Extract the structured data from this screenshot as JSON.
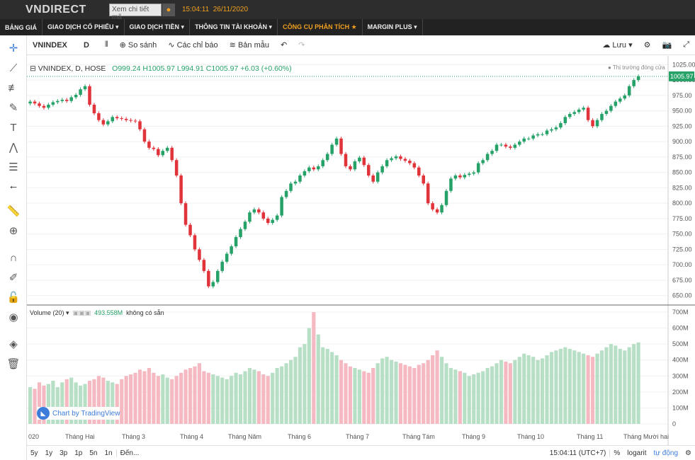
{
  "header": {
    "logo": "VNDIRECT",
    "search_placeholder": "Xem chi tiết mã",
    "clock": "15:04:11",
    "date": "26/11/2020"
  },
  "menu": [
    {
      "label": "BẢNG GIÁ",
      "active": false
    },
    {
      "label": "GIAO DỊCH CỔ PHIẾU ▾",
      "active": false
    },
    {
      "label": "GIAO DỊCH TIỀN ▾",
      "active": false
    },
    {
      "label": "THÔNG TIN TÀI KHOẢN ▾",
      "active": false
    },
    {
      "label": "CÔNG CỤ PHÂN TÍCH ★",
      "active": true
    },
    {
      "label": "MARGIN PLUS ▾",
      "active": false
    }
  ],
  "toolbar": {
    "symbol": "VNINDEX",
    "interval": "D",
    "compare": "So sánh",
    "indicators": "Các chỉ báo",
    "templates": "Bản mẫu",
    "save": "Lưu"
  },
  "legend": {
    "title": "VNINDEX, D, HOSE",
    "open": "O999.24",
    "high": "H1005.97",
    "low": "L994.91",
    "close": "C1005.97",
    "change": "+6.03 (+0.60%)",
    "market_status": "Thị trường đóng cửa",
    "last_price": "1005.97"
  },
  "volume_legend": {
    "label": "Volume (20)",
    "value": "493.558M",
    "na": "không có sẵn"
  },
  "watermark": "Chart by TradingView",
  "chart_data": {
    "type": "candlestick",
    "price_axis": [
      "1025.00",
      "1000.00",
      "975.00",
      "950.00",
      "925.00",
      "900.00",
      "875.00",
      "850.00",
      "825.00",
      "800.00",
      "775.00",
      "750.00",
      "725.00",
      "700.00",
      "675.00",
      "650.00"
    ],
    "price_range": [
      637,
      1030
    ],
    "volume_axis": [
      "700M",
      "600M",
      "500M",
      "400M",
      "300M",
      "200M",
      "100M",
      "0"
    ],
    "volume_range": [
      0,
      700
    ],
    "x_labels": [
      "020",
      "Tháng Hai",
      "Tháng 3",
      "Tháng 4",
      "Tháng Năm",
      "Tháng 6",
      "Tháng 7",
      "Tháng Tám",
      "Tháng 9",
      "Tháng 10",
      "Tháng 11",
      "Tháng Mười hai"
    ],
    "close_path": [
      965,
      962,
      958,
      955,
      960,
      964,
      966,
      968,
      966,
      972,
      976,
      985,
      990,
      960,
      946,
      935,
      928,
      933,
      940,
      938,
      937,
      935,
      934,
      933,
      920,
      900,
      890,
      888,
      878,
      885,
      890,
      870,
      845,
      800,
      765,
      748,
      725,
      708,
      690,
      665,
      672,
      690,
      705,
      718,
      730,
      745,
      758,
      770,
      785,
      790,
      785,
      775,
      768,
      773,
      780,
      810,
      820,
      832,
      835,
      845,
      852,
      858,
      855,
      860,
      870,
      880,
      895,
      905,
      880,
      860,
      855,
      868,
      874,
      862,
      845,
      835,
      850,
      860,
      870,
      873,
      876,
      872,
      869,
      865,
      858,
      845,
      832,
      800,
      790,
      785,
      797,
      820,
      840,
      845,
      842,
      846,
      848,
      850,
      865,
      870,
      880,
      885,
      895,
      895,
      892,
      890,
      895,
      900,
      905,
      905,
      910,
      912,
      912,
      918,
      920,
      923,
      930,
      940,
      945,
      948,
      952,
      955,
      935,
      925,
      935,
      945,
      950,
      958,
      965,
      970,
      975,
      990,
      1000,
      1006
    ],
    "volume_series_M": [
      230,
      220,
      260,
      240,
      250,
      270,
      230,
      260,
      280,
      290,
      260,
      240,
      250,
      270,
      280,
      300,
      290,
      270,
      260,
      250,
      280,
      300,
      310,
      320,
      340,
      330,
      350,
      320,
      300,
      310,
      290,
      280,
      300,
      320,
      340,
      350,
      360,
      380,
      330,
      320,
      310,
      300,
      290,
      280,
      300,
      320,
      310,
      330,
      350,
      340,
      330,
      310,
      300,
      320,
      350,
      360,
      380,
      400,
      420,
      480,
      500,
      600,
      700,
      560,
      480,
      470,
      450,
      430,
      400,
      380,
      360,
      350,
      340,
      330,
      320,
      350,
      380,
      410,
      420,
      400,
      390,
      380,
      370,
      360,
      350,
      370,
      380,
      400,
      430,
      460,
      420,
      380,
      350,
      340,
      330,
      320,
      300,
      310,
      320,
      330,
      350,
      360,
      380,
      400,
      390,
      380,
      400,
      420,
      440,
      430,
      420,
      400,
      410,
      430,
      450,
      460,
      470,
      480,
      470,
      460,
      450,
      440,
      430,
      420,
      440,
      460,
      480,
      500,
      490,
      470,
      460,
      480,
      500,
      510,
      520,
      530,
      540,
      520,
      500,
      490
    ]
  }
}
